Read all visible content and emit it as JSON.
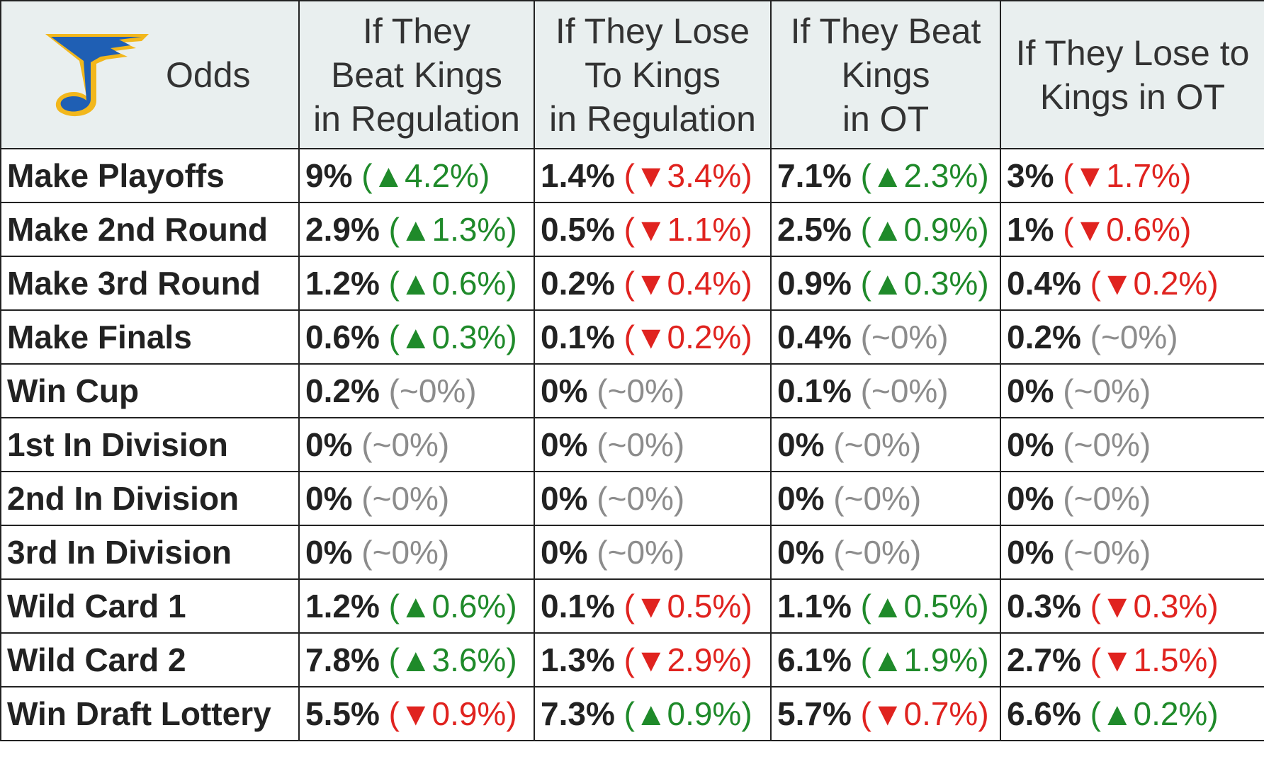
{
  "header": {
    "odds": "Odds",
    "columns": [
      [
        "If They",
        "Beat Kings",
        "in Regulation"
      ],
      [
        "If They Lose",
        "To Kings",
        "in Regulation"
      ],
      [
        "If They Beat",
        "Kings",
        "in OT"
      ],
      [
        "If They Lose to",
        "Kings in OT"
      ]
    ]
  },
  "colors": {
    "up": "#1f8a2a",
    "down": "#e0231f",
    "flat": "#8c8c8c"
  },
  "rows": [
    {
      "label": "Make Playoffs",
      "cells": [
        {
          "value": "9%",
          "change": "(▲4.2%)",
          "trend": "up"
        },
        {
          "value": "1.4%",
          "change": "(▼3.4%)",
          "trend": "down"
        },
        {
          "value": "7.1%",
          "change": "(▲2.3%)",
          "trend": "up"
        },
        {
          "value": "3%",
          "change": "(▼1.7%)",
          "trend": "down"
        }
      ]
    },
    {
      "label": "Make 2nd Round",
      "cells": [
        {
          "value": "2.9%",
          "change": "(▲1.3%)",
          "trend": "up"
        },
        {
          "value": "0.5%",
          "change": "(▼1.1%)",
          "trend": "down"
        },
        {
          "value": "2.5%",
          "change": "(▲0.9%)",
          "trend": "up"
        },
        {
          "value": "1%",
          "change": "(▼0.6%)",
          "trend": "down"
        }
      ]
    },
    {
      "label": "Make 3rd Round",
      "cells": [
        {
          "value": "1.2%",
          "change": "(▲0.6%)",
          "trend": "up"
        },
        {
          "value": "0.2%",
          "change": "(▼0.4%)",
          "trend": "down"
        },
        {
          "value": "0.9%",
          "change": "(▲0.3%)",
          "trend": "up"
        },
        {
          "value": "0.4%",
          "change": "(▼0.2%)",
          "trend": "down"
        }
      ]
    },
    {
      "label": "Make Finals",
      "cells": [
        {
          "value": "0.6%",
          "change": "(▲0.3%)",
          "trend": "up"
        },
        {
          "value": "0.1%",
          "change": "(▼0.2%)",
          "trend": "down"
        },
        {
          "value": "0.4%",
          "change": "(~0%)",
          "trend": "flat"
        },
        {
          "value": "0.2%",
          "change": "(~0%)",
          "trend": "flat"
        }
      ]
    },
    {
      "label": "Win Cup",
      "cells": [
        {
          "value": "0.2%",
          "change": "(~0%)",
          "trend": "flat"
        },
        {
          "value": "0%",
          "change": "(~0%)",
          "trend": "flat"
        },
        {
          "value": "0.1%",
          "change": "(~0%)",
          "trend": "flat"
        },
        {
          "value": "0%",
          "change": "(~0%)",
          "trend": "flat"
        }
      ]
    },
    {
      "label": "1st In Division",
      "cells": [
        {
          "value": "0%",
          "change": "(~0%)",
          "trend": "flat"
        },
        {
          "value": "0%",
          "change": "(~0%)",
          "trend": "flat"
        },
        {
          "value": "0%",
          "change": "(~0%)",
          "trend": "flat"
        },
        {
          "value": "0%",
          "change": "(~0%)",
          "trend": "flat"
        }
      ]
    },
    {
      "label": "2nd In Division",
      "cells": [
        {
          "value": "0%",
          "change": "(~0%)",
          "trend": "flat"
        },
        {
          "value": "0%",
          "change": "(~0%)",
          "trend": "flat"
        },
        {
          "value": "0%",
          "change": "(~0%)",
          "trend": "flat"
        },
        {
          "value": "0%",
          "change": "(~0%)",
          "trend": "flat"
        }
      ]
    },
    {
      "label": "3rd In Division",
      "cells": [
        {
          "value": "0%",
          "change": "(~0%)",
          "trend": "flat"
        },
        {
          "value": "0%",
          "change": "(~0%)",
          "trend": "flat"
        },
        {
          "value": "0%",
          "change": "(~0%)",
          "trend": "flat"
        },
        {
          "value": "0%",
          "change": "(~0%)",
          "trend": "flat"
        }
      ]
    },
    {
      "label": "Wild Card 1",
      "cells": [
        {
          "value": "1.2%",
          "change": "(▲0.6%)",
          "trend": "up"
        },
        {
          "value": "0.1%",
          "change": "(▼0.5%)",
          "trend": "down"
        },
        {
          "value": "1.1%",
          "change": "(▲0.5%)",
          "trend": "up"
        },
        {
          "value": "0.3%",
          "change": "(▼0.3%)",
          "trend": "down"
        }
      ]
    },
    {
      "label": "Wild Card 2",
      "cells": [
        {
          "value": "7.8%",
          "change": "(▲3.6%)",
          "trend": "up"
        },
        {
          "value": "1.3%",
          "change": "(▼2.9%)",
          "trend": "down"
        },
        {
          "value": "6.1%",
          "change": "(▲1.9%)",
          "trend": "up"
        },
        {
          "value": "2.7%",
          "change": "(▼1.5%)",
          "trend": "down"
        }
      ]
    },
    {
      "label": "Win Draft Lottery",
      "cells": [
        {
          "value": "5.5%",
          "change": "(▼0.9%)",
          "trend": "down"
        },
        {
          "value": "7.3%",
          "change": "(▲0.9%)",
          "trend": "up"
        },
        {
          "value": "5.7%",
          "change": "(▼0.7%)",
          "trend": "down"
        },
        {
          "value": "6.6%",
          "change": "(▲0.2%)",
          "trend": "up"
        }
      ]
    }
  ]
}
